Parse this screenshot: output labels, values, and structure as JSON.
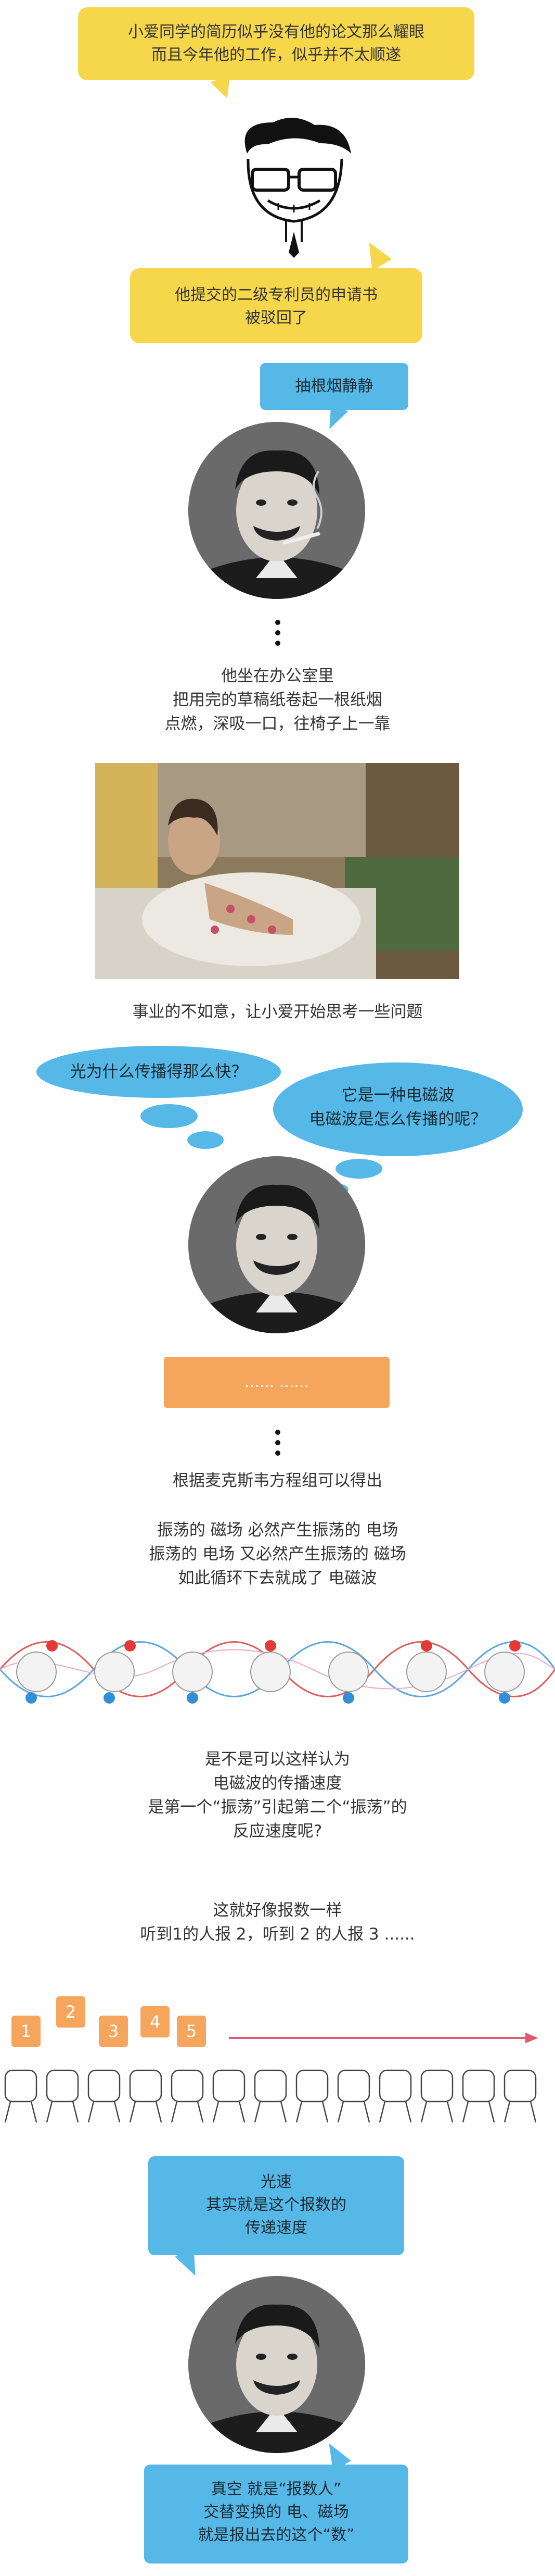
{
  "bubbles": {
    "intro1": "小爱同学的简历似乎没有他的论文那么耀眼",
    "intro2": "而且今年他的工作，似乎并不太顺遂",
    "patent1": "他提交的二级专利员的申请书",
    "patent2": "被驳回了",
    "smoke": "抽根烟静静"
  },
  "office": {
    "l1": "他坐在办公室里",
    "l2": "把用完的草稿纸卷起一根纸烟",
    "l3": "点燃，深吸一口，往椅子上一靠"
  },
  "caption_unlucky": "事业的不如意，让小爱开始思考一些问题",
  "thoughts": {
    "q1": "光为什么传播得那么快？",
    "a1": "它是一种电磁波",
    "a2": "电磁波是怎么传播的呢？"
  },
  "ellipsis_tag": "...... ......",
  "maxwell": "根据麦克斯韦方程组可以得出",
  "osc": {
    "l1": "振荡的 磁场 必然产生振荡的 电场",
    "l2": "振荡的 电场 又必然产生振荡的 磁场",
    "l3": "如此循环下去就成了 电磁波"
  },
  "question": {
    "l1": "是不是可以这样认为",
    "l2": "电磁波的传播速度",
    "l3": "是第一个“振荡”引起第二个“振荡”的",
    "l4": "反应速度呢?"
  },
  "count": {
    "l1": "这就好像报数一样",
    "l2": "听到1的人报 2，听到 2 的人报 3 ......"
  },
  "numbers": [
    "1",
    "2",
    "3",
    "4",
    "5"
  ],
  "speed": {
    "l1": "光速",
    "l2": "其实就是这个报数的",
    "l3": "传递速度"
  },
  "vacuum": {
    "l1": "真空 就是“报数人”",
    "l2": "交替变换的 电、磁场",
    "l3": "就是报出去的这个“数”"
  },
  "colors": {
    "yellow": "#f6d64a",
    "blue": "#56b8e6",
    "orange": "#f5a55c",
    "red": "#e53935"
  }
}
